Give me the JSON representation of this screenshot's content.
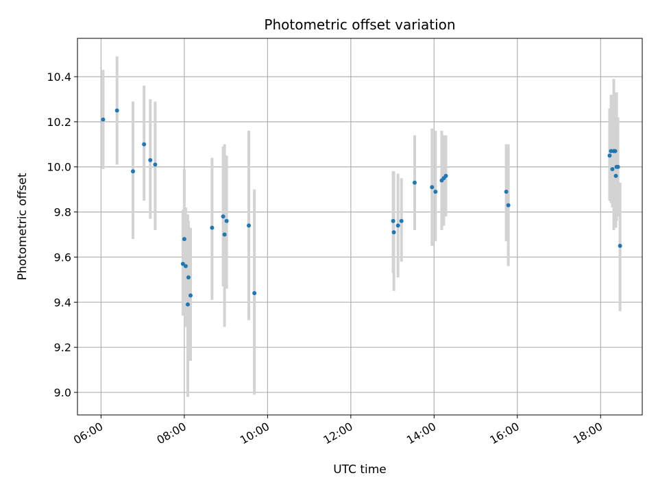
{
  "chart_data": {
    "type": "scatter",
    "title": "Photometric offset variation",
    "xlabel": "UTC time",
    "ylabel": "Photometric offset",
    "xlim": [
      "05:26",
      "19:00"
    ],
    "ylim": [
      8.9,
      10.57
    ],
    "x_ticks": [
      "06:00",
      "08:00",
      "10:00",
      "12:00",
      "14:00",
      "16:00",
      "18:00"
    ],
    "y_ticks": [
      "9.0",
      "9.2",
      "9.4",
      "9.6",
      "9.8",
      "10.0",
      "10.2",
      "10.4"
    ],
    "grid": true,
    "colors": {
      "marker": "#1f77b4",
      "errorbar": "#d3d3d3",
      "grid": "#b0b0b0"
    },
    "points": [
      {
        "x": "06:03",
        "y": 10.21,
        "ylow": 9.99,
        "yhigh": 10.43
      },
      {
        "x": "06:23",
        "y": 10.25,
        "ylow": 10.01,
        "yhigh": 10.49
      },
      {
        "x": "06:46",
        "y": 9.98,
        "ylow": 9.68,
        "yhigh": 10.29
      },
      {
        "x": "07:02",
        "y": 10.1,
        "ylow": 9.85,
        "yhigh": 10.36
      },
      {
        "x": "07:11",
        "y": 10.03,
        "ylow": 9.77,
        "yhigh": 10.3
      },
      {
        "x": "07:18",
        "y": 10.01,
        "ylow": 9.72,
        "yhigh": 10.29
      },
      {
        "x": "07:58",
        "y": 9.57,
        "ylow": 9.34,
        "yhigh": 9.81
      },
      {
        "x": "08:00",
        "y": 9.68,
        "ylow": 9.37,
        "yhigh": 9.99
      },
      {
        "x": "08:02",
        "y": 9.56,
        "ylow": 9.29,
        "yhigh": 9.82
      },
      {
        "x": "08:05",
        "y": 9.39,
        "ylow": 8.98,
        "yhigh": 9.79
      },
      {
        "x": "08:06",
        "y": 9.51,
        "ylow": 9.26,
        "yhigh": 9.76
      },
      {
        "x": "08:09",
        "y": 9.43,
        "ylow": 9.14,
        "yhigh": 9.73
      },
      {
        "x": "08:40",
        "y": 9.73,
        "ylow": 9.41,
        "yhigh": 10.04
      },
      {
        "x": "08:56",
        "y": 9.78,
        "ylow": 9.47,
        "yhigh": 10.09
      },
      {
        "x": "08:58",
        "y": 9.7,
        "ylow": 9.29,
        "yhigh": 10.1
      },
      {
        "x": "09:01",
        "y": 9.76,
        "ylow": 9.46,
        "yhigh": 10.05
      },
      {
        "x": "09:33",
        "y": 9.74,
        "ylow": 9.32,
        "yhigh": 10.16
      },
      {
        "x": "09:41",
        "y": 9.44,
        "ylow": 8.99,
        "yhigh": 9.9
      },
      {
        "x": "13:01",
        "y": 9.76,
        "ylow": 9.53,
        "yhigh": 9.98
      },
      {
        "x": "13:02",
        "y": 9.71,
        "ylow": 9.45,
        "yhigh": 9.98
      },
      {
        "x": "13:08",
        "y": 9.74,
        "ylow": 9.51,
        "yhigh": 9.97
      },
      {
        "x": "13:13",
        "y": 9.76,
        "ylow": 9.58,
        "yhigh": 9.95
      },
      {
        "x": "13:32",
        "y": 9.93,
        "ylow": 9.72,
        "yhigh": 10.14
      },
      {
        "x": "13:57",
        "y": 9.91,
        "ylow": 9.65,
        "yhigh": 10.17
      },
      {
        "x": "14:02",
        "y": 9.89,
        "ylow": 9.67,
        "yhigh": 10.16
      },
      {
        "x": "14:11",
        "y": 9.94,
        "ylow": 9.72,
        "yhigh": 10.16
      },
      {
        "x": "14:14",
        "y": 9.95,
        "ylow": 9.74,
        "yhigh": 10.14
      },
      {
        "x": "14:17",
        "y": 9.96,
        "ylow": 9.78,
        "yhigh": 10.14
      },
      {
        "x": "15:44",
        "y": 9.89,
        "ylow": 9.67,
        "yhigh": 10.1
      },
      {
        "x": "15:47",
        "y": 9.83,
        "ylow": 9.56,
        "yhigh": 10.1
      },
      {
        "x": "18:13",
        "y": 10.05,
        "ylow": 9.85,
        "yhigh": 10.26
      },
      {
        "x": "18:15",
        "y": 10.07,
        "ylow": 9.84,
        "yhigh": 10.32
      },
      {
        "x": "18:17",
        "y": 9.99,
        "ylow": 9.82,
        "yhigh": 10.18
      },
      {
        "x": "18:19",
        "y": 10.07,
        "ylow": 9.72,
        "yhigh": 10.39
      },
      {
        "x": "18:21",
        "y": 10.07,
        "ylow": 9.88,
        "yhigh": 10.3
      },
      {
        "x": "18:22",
        "y": 9.96,
        "ylow": 9.73,
        "yhigh": 10.22
      },
      {
        "x": "18:23",
        "y": 10.0,
        "ylow": 9.76,
        "yhigh": 10.33
      },
      {
        "x": "18:25",
        "y": 10.0,
        "ylow": 9.78,
        "yhigh": 10.22
      },
      {
        "x": "18:28",
        "y": 9.65,
        "ylow": 9.36,
        "yhigh": 9.93
      }
    ]
  }
}
